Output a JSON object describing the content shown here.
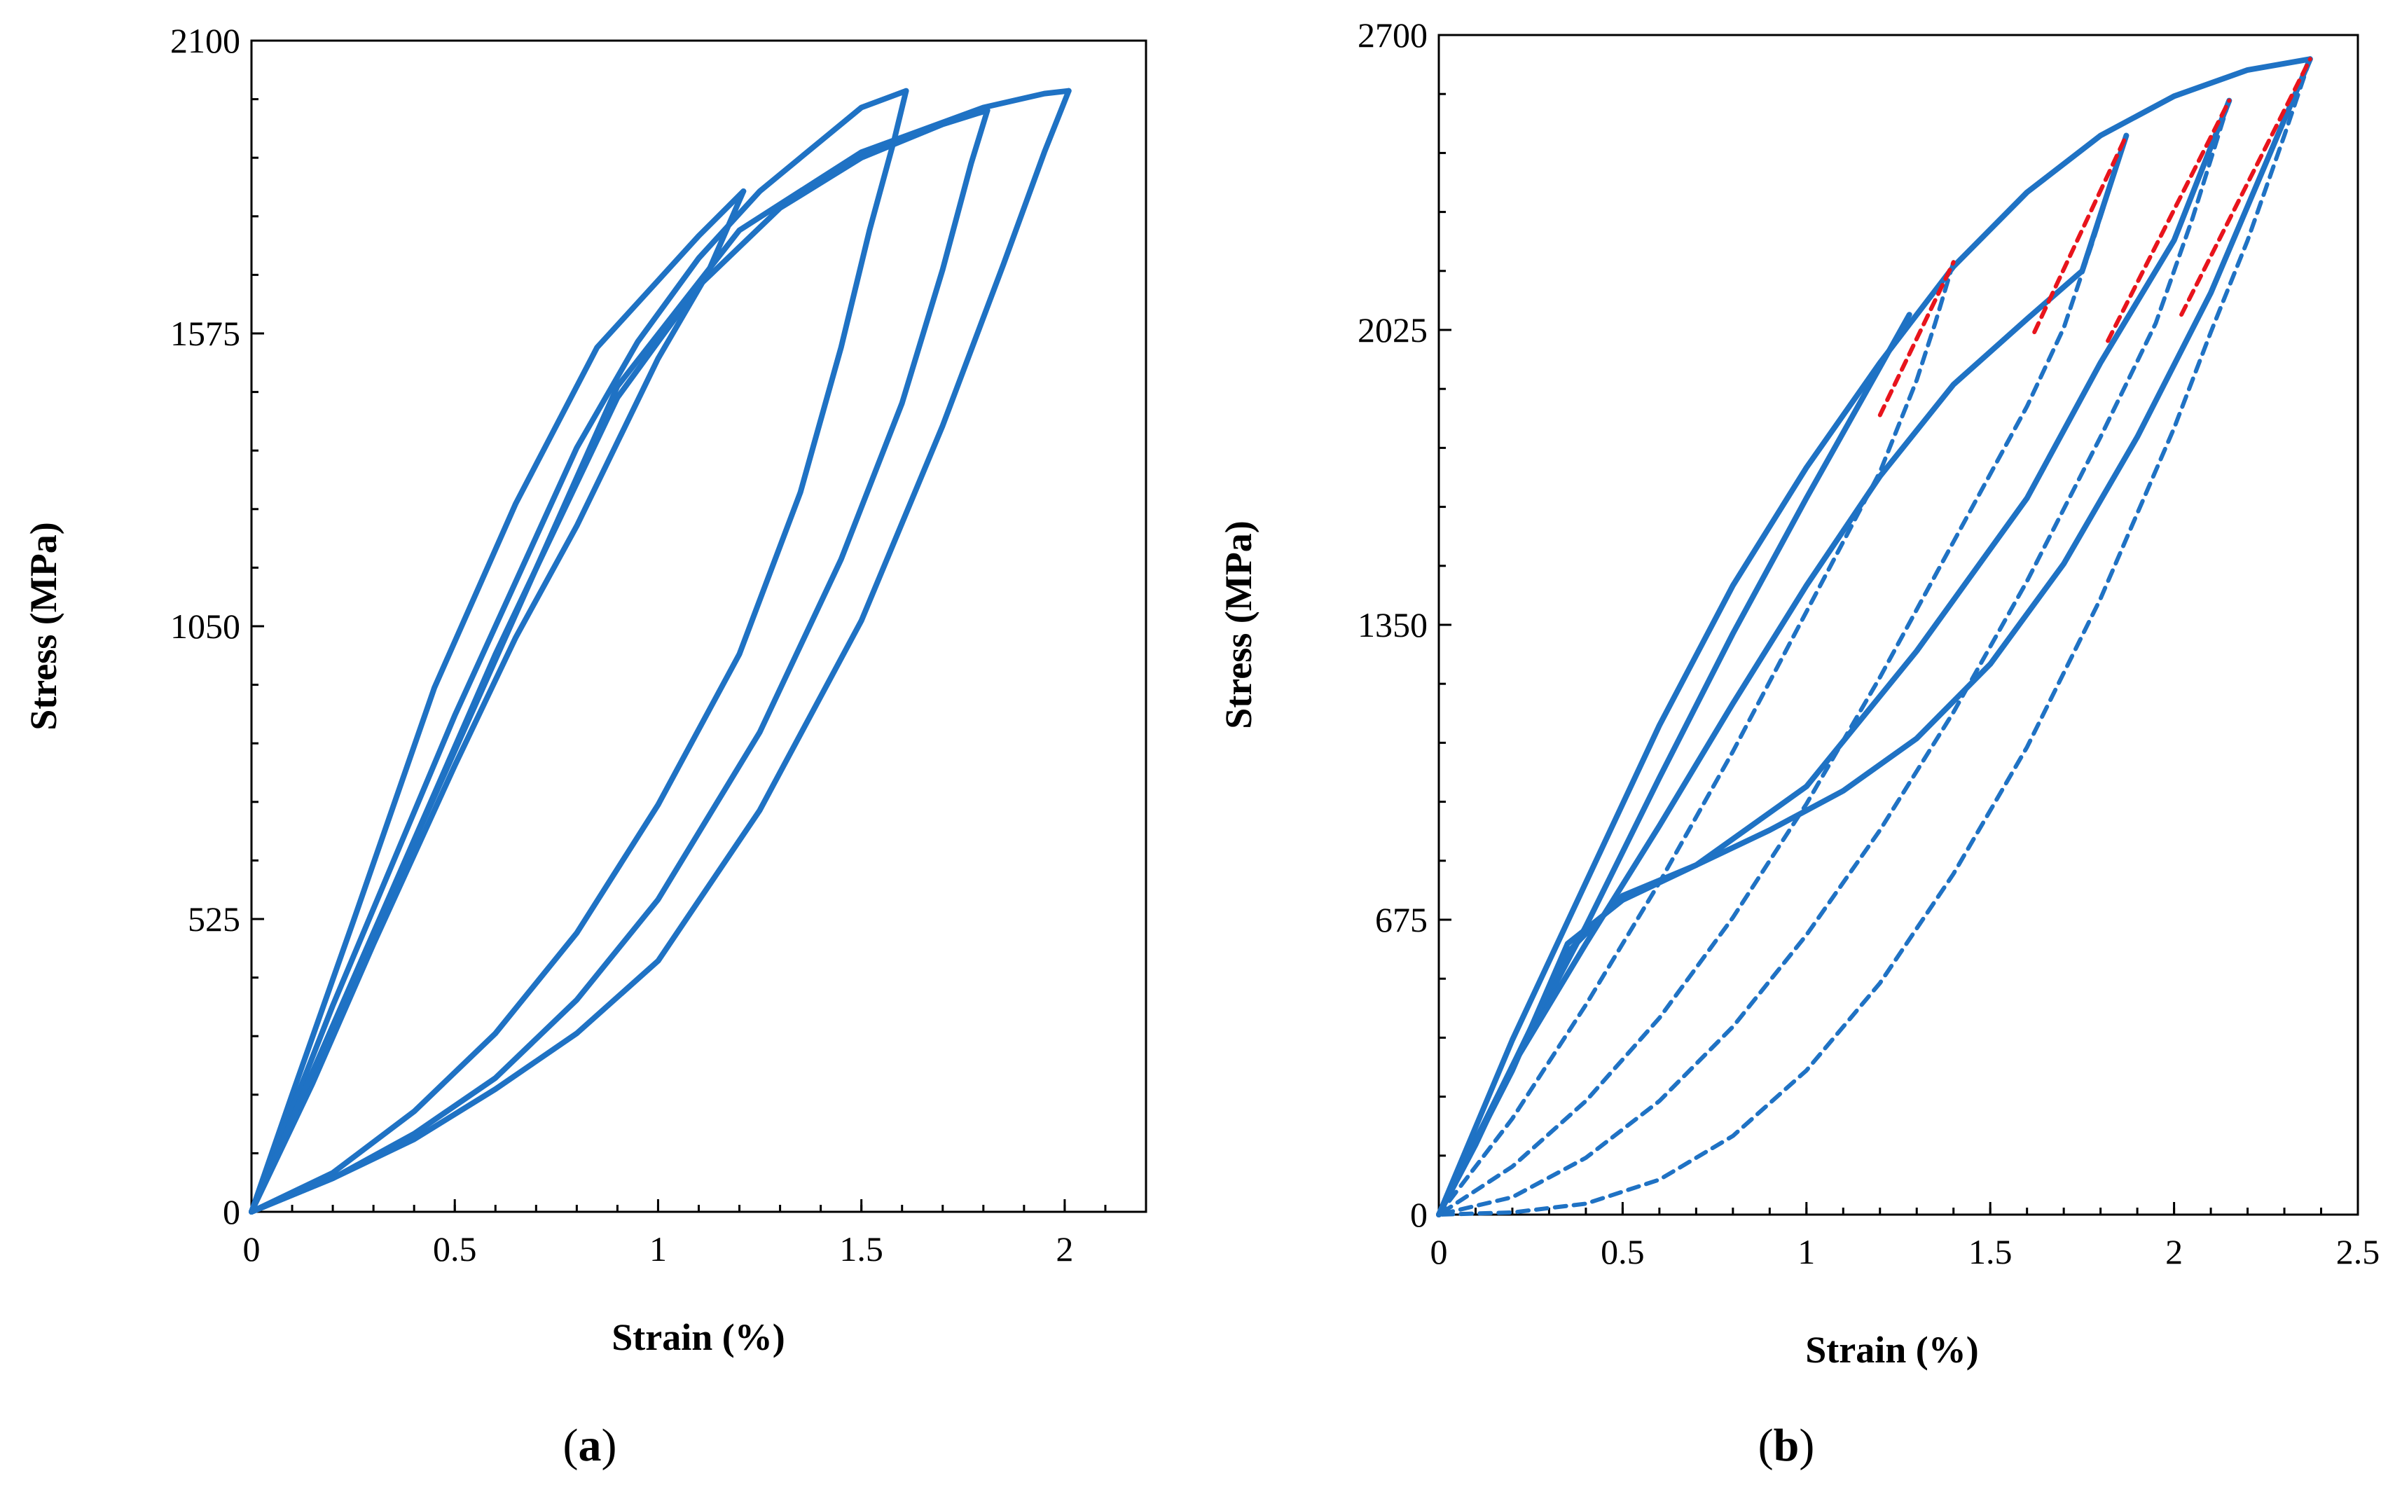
{
  "chart_data": [
    {
      "type": "line",
      "panel_label": "a",
      "xlabel": "Strain (%)",
      "ylabel": "Stress (MPa)",
      "xlim": [
        0,
        2.2
      ],
      "ylim": [
        0,
        2100
      ],
      "x_ticks": [
        0,
        0.5,
        1,
        1.5,
        2
      ],
      "y_ticks": [
        0,
        525,
        1050,
        1575,
        2100
      ],
      "x_tick_labels": [
        "0",
        "0.5",
        "1",
        "1.5",
        "2"
      ],
      "y_tick_labels": [
        "0",
        "525",
        "1050",
        "1575",
        "2100"
      ],
      "grid": false,
      "legend": "none",
      "series": [
        {
          "style": "solid",
          "color": "#1f72c4",
          "x": [
            0.0,
            0.1,
            0.25,
            0.45,
            0.65,
            0.85,
            1.0,
            1.1,
            1.21
          ],
          "y": [
            0,
            210,
            520,
            940,
            1270,
            1550,
            1670,
            1750,
            1830
          ]
        },
        {
          "style": "solid",
          "color": "#1f72c4",
          "x": [
            1.21,
            1.12,
            1.0,
            0.9,
            0.8,
            0.65,
            0.5,
            0.3,
            0.15,
            0.0
          ],
          "y": [
            1830,
            1680,
            1530,
            1380,
            1230,
            1030,
            800,
            480,
            230,
            0
          ]
        },
        {
          "style": "solid",
          "color": "#1f72c4",
          "x": [
            0.0,
            0.2,
            0.5,
            0.8,
            0.95,
            1.1,
            1.25,
            1.4,
            1.5,
            1.61
          ],
          "y": [
            0,
            370,
            890,
            1370,
            1560,
            1710,
            1830,
            1920,
            1980,
            2010
          ]
        },
        {
          "style": "solid",
          "color": "#1f72c4",
          "x": [
            1.61,
            1.58,
            1.52,
            1.45,
            1.35,
            1.2,
            1.0,
            0.8,
            0.6,
            0.4,
            0.2,
            0.0
          ],
          "y": [
            2010,
            1920,
            1760,
            1550,
            1290,
            1000,
            730,
            500,
            320,
            180,
            70,
            0
          ]
        },
        {
          "style": "solid",
          "color": "#1f72c4",
          "x": [
            0.0,
            0.3,
            0.6,
            0.9,
            1.1,
            1.3,
            1.5,
            1.7,
            1.81
          ],
          "y": [
            0,
            500,
            1000,
            1460,
            1660,
            1800,
            1890,
            1950,
            1975
          ]
        },
        {
          "style": "solid",
          "color": "#1f72c4",
          "x": [
            1.81,
            1.77,
            1.7,
            1.6,
            1.45,
            1.25,
            1.0,
            0.8,
            0.6,
            0.4,
            0.2,
            0.0
          ],
          "y": [
            1975,
            1880,
            1690,
            1450,
            1170,
            860,
            560,
            380,
            240,
            140,
            60,
            0
          ]
        },
        {
          "style": "solid",
          "color": "#1f72c4",
          "x": [
            0.0,
            0.3,
            0.6,
            0.9,
            1.2,
            1.5,
            1.8,
            1.95,
            2.01
          ],
          "y": [
            0,
            500,
            990,
            1480,
            1760,
            1900,
            1980,
            2005,
            2010
          ]
        },
        {
          "style": "solid",
          "color": "#1f72c4",
          "x": [
            2.01,
            1.95,
            1.85,
            1.7,
            1.5,
            1.25,
            1.0,
            0.8,
            0.6,
            0.4,
            0.2,
            0.0
          ],
          "y": [
            2010,
            1900,
            1700,
            1410,
            1060,
            720,
            450,
            320,
            220,
            130,
            60,
            0
          ]
        }
      ]
    },
    {
      "type": "line",
      "panel_label": "b",
      "xlabel": "Strain (%)",
      "ylabel": "Stress (MPa)",
      "xlim": [
        0,
        2.5
      ],
      "ylim": [
        0,
        2700
      ],
      "x_ticks": [
        0,
        0.5,
        1,
        1.5,
        2,
        2.5
      ],
      "y_ticks": [
        0,
        675,
        1350,
        2025,
        2700
      ],
      "x_tick_labels": [
        "0",
        "0.5",
        "1",
        "1.5",
        "2",
        "2.5"
      ],
      "y_tick_labels": [
        "0",
        "675",
        "1350",
        "2025",
        "2700"
      ],
      "grid": false,
      "legend": "none",
      "series": [
        {
          "style": "solid",
          "color": "#1f72c4",
          "x": [
            0.0,
            0.2,
            0.4,
            0.6,
            0.8,
            1.0,
            1.2,
            1.4,
            1.6,
            1.8,
            2.0,
            2.2,
            2.37
          ],
          "y": [
            0,
            400,
            760,
            1120,
            1440,
            1710,
            1950,
            2170,
            2340,
            2470,
            2560,
            2620,
            2645
          ]
        },
        {
          "style": "solid",
          "color": "#1f72c4",
          "x": [
            1.28,
            1.2,
            1.1,
            1.0,
            0.8,
            0.6,
            0.4,
            0.2,
            0.1,
            0.0
          ],
          "y": [
            2060,
            1940,
            1790,
            1640,
            1330,
            1000,
            660,
            340,
            160,
            0
          ]
        },
        {
          "style": "dashed",
          "color": "#1f72c4",
          "x": [
            1.4,
            1.35,
            1.3,
            1.2,
            1.0,
            0.8,
            0.6,
            0.4,
            0.2,
            0.0
          ],
          "y": [
            2180,
            2040,
            1910,
            1700,
            1380,
            1060,
            760,
            480,
            220,
            0
          ]
        },
        {
          "style": "solid",
          "color": "#1f72c4",
          "x": [
            0.0,
            0.2,
            0.4,
            0.6,
            0.8,
            1.0,
            1.2,
            1.4,
            1.6,
            1.75,
            1.87
          ],
          "y": [
            0,
            340,
            620,
            890,
            1170,
            1440,
            1690,
            1900,
            2050,
            2160,
            2470
          ]
        },
        {
          "style": "dashed",
          "color": "#1f72c4",
          "x": [
            1.87,
            1.78,
            1.7,
            1.6,
            1.4,
            1.2,
            1.0,
            0.8,
            0.6,
            0.4,
            0.2,
            0.0
          ],
          "y": [
            2470,
            2230,
            2030,
            1850,
            1540,
            1230,
            940,
            680,
            450,
            260,
            110,
            0
          ]
        },
        {
          "style": "solid",
          "color": "#1f72c4",
          "x": [
            0.0,
            0.2,
            0.35,
            0.5,
            0.7,
            1.0,
            1.3,
            1.6,
            1.8,
            2.0,
            2.15
          ],
          "y": [
            0,
            340,
            600,
            730,
            800,
            980,
            1290,
            1640,
            1950,
            2230,
            2550
          ]
        },
        {
          "style": "dashed",
          "color": "#1f72c4",
          "x": [
            2.15,
            2.05,
            1.95,
            1.8,
            1.6,
            1.4,
            1.2,
            1.0,
            0.8,
            0.6,
            0.4,
            0.2,
            0.0
          ],
          "y": [
            2550,
            2280,
            2040,
            1780,
            1450,
            1150,
            880,
            640,
            430,
            260,
            130,
            40,
            0
          ]
        },
        {
          "style": "solid",
          "color": "#1f72c4",
          "x": [
            0.0,
            0.2,
            0.35,
            0.5,
            0.7,
            0.9,
            1.1,
            1.3,
            1.5,
            1.7,
            1.9,
            2.1,
            2.37
          ],
          "y": [
            0,
            330,
            620,
            720,
            800,
            880,
            970,
            1090,
            1260,
            1490,
            1780,
            2110,
            2645
          ]
        },
        {
          "style": "dashed",
          "color": "#1f72c4",
          "x": [
            2.37,
            2.3,
            2.2,
            2.1,
            2.0,
            1.8,
            1.6,
            1.4,
            1.2,
            1.0,
            0.8,
            0.6,
            0.4,
            0.2,
            0.0
          ],
          "y": [
            2645,
            2470,
            2230,
            2020,
            1800,
            1410,
            1070,
            780,
            530,
            330,
            180,
            80,
            25,
            5,
            0
          ]
        },
        {
          "style": "red-dashed",
          "color": "#e8141c",
          "x": [
            1.2,
            1.4
          ],
          "y": [
            1830,
            2180
          ]
        },
        {
          "style": "red-dashed",
          "color": "#e8141c",
          "x": [
            1.62,
            1.87
          ],
          "y": [
            2020,
            2470
          ]
        },
        {
          "style": "red-dashed",
          "color": "#e8141c",
          "x": [
            1.82,
            2.15
          ],
          "y": [
            2000,
            2550
          ]
        },
        {
          "style": "red-dashed",
          "color": "#e8141c",
          "x": [
            2.02,
            2.37
          ],
          "y": [
            2060,
            2645
          ]
        }
      ]
    }
  ]
}
